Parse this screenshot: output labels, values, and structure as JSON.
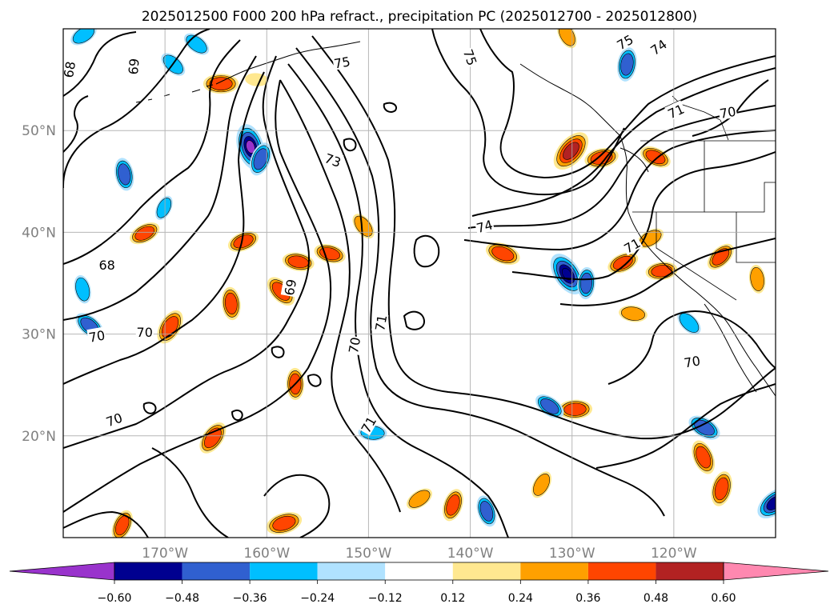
{
  "title": "2025012500 F000 200 hPa refract., precipitation PC (2025012700 - 2025012800)",
  "map": {
    "projection": "plate-carree",
    "lon_range": [
      -180,
      -110
    ],
    "lat_range": [
      10,
      60
    ],
    "lon_ticks": [
      {
        "value": -170,
        "label": "170°W"
      },
      {
        "value": -160,
        "label": "160°W"
      },
      {
        "value": -150,
        "label": "150°W"
      },
      {
        "value": -140,
        "label": "140°W"
      },
      {
        "value": -130,
        "label": "130°W"
      },
      {
        "value": -120,
        "label": "120°W"
      }
    ],
    "lat_ticks": [
      {
        "value": 20,
        "label": "20°N"
      },
      {
        "value": 30,
        "label": "30°N"
      },
      {
        "value": 40,
        "label": "40°N"
      },
      {
        "value": 50,
        "label": "50°N"
      }
    ],
    "grid": true,
    "contour_color": "#000000",
    "contour_labels": [
      {
        "text": "68",
        "lon": -179.4,
        "lat": 56.0,
        "rotate": -80
      },
      {
        "text": "69",
        "lon": -173.1,
        "lat": 56.3,
        "rotate": -85
      },
      {
        "text": "75",
        "lon": -152.6,
        "lat": 56.7,
        "rotate": -10
      },
      {
        "text": "75",
        "lon": -140.0,
        "lat": 57.2,
        "rotate": 70
      },
      {
        "text": "75",
        "lon": -124.8,
        "lat": 58.7,
        "rotate": -30
      },
      {
        "text": "74",
        "lon": -121.5,
        "lat": 58.2,
        "rotate": -35
      },
      {
        "text": "73",
        "lon": -153.5,
        "lat": 47.1,
        "rotate": 20
      },
      {
        "text": "71",
        "lon": -119.8,
        "lat": 51.9,
        "rotate": -25
      },
      {
        "text": "70",
        "lon": -114.7,
        "lat": 51.8,
        "rotate": -10
      },
      {
        "text": "74",
        "lon": -138.6,
        "lat": 40.6,
        "rotate": -15
      },
      {
        "text": "71",
        "lon": -124.1,
        "lat": 38.7,
        "rotate": -30
      },
      {
        "text": "68",
        "lon": -175.7,
        "lat": 36.8,
        "rotate": 0
      },
      {
        "text": "69",
        "lon": -157.7,
        "lat": 34.6,
        "rotate": -80
      },
      {
        "text": "70",
        "lon": -151.4,
        "lat": 28.9,
        "rotate": -80
      },
      {
        "text": "71",
        "lon": -148.8,
        "lat": 31.1,
        "rotate": -80
      },
      {
        "text": "70",
        "lon": -176.7,
        "lat": 29.8,
        "rotate": -10
      },
      {
        "text": "70",
        "lon": -172.0,
        "lat": 30.2,
        "rotate": 0
      },
      {
        "text": "70",
        "lon": -118.2,
        "lat": 27.3,
        "rotate": -10
      },
      {
        "text": "70",
        "lon": -175.0,
        "lat": 21.6,
        "rotate": -20
      },
      {
        "text": "71",
        "lon": -150.0,
        "lat": 21.1,
        "rotate": -60
      }
    ],
    "precip_features": [
      {
        "lon": -164.5,
        "lat": 54.6,
        "value": 0.42
      },
      {
        "lon": -166.9,
        "lat": 58.5,
        "value": -0.3
      },
      {
        "lon": -161.6,
        "lat": 48.4,
        "value": -0.62
      },
      {
        "lon": -160.6,
        "lat": 47.2,
        "value": -0.4
      },
      {
        "lon": -178.0,
        "lat": 59.4,
        "value": -0.3
      },
      {
        "lon": -161.0,
        "lat": 55.0,
        "value": 0.2
      },
      {
        "lon": -169.2,
        "lat": 56.5,
        "value": -0.3
      },
      {
        "lon": -174.0,
        "lat": 45.7,
        "value": -0.38
      },
      {
        "lon": -170.1,
        "lat": 42.4,
        "value": -0.25
      },
      {
        "lon": -172.0,
        "lat": 39.9,
        "value": 0.36
      },
      {
        "lon": -156.9,
        "lat": 37.1,
        "value": 0.36
      },
      {
        "lon": -158.6,
        "lat": 34.2,
        "value": 0.4
      },
      {
        "lon": -163.5,
        "lat": 33.0,
        "value": 0.38
      },
      {
        "lon": -169.5,
        "lat": 30.7,
        "value": 0.44
      },
      {
        "lon": -162.3,
        "lat": 39.1,
        "value": 0.36
      },
      {
        "lon": -153.8,
        "lat": 37.9,
        "value": 0.36
      },
      {
        "lon": -150.5,
        "lat": 40.6,
        "value": 0.3
      },
      {
        "lon": -157.2,
        "lat": 25.1,
        "value": 0.36
      },
      {
        "lon": -165.3,
        "lat": 19.8,
        "value": 0.42
      },
      {
        "lon": -158.3,
        "lat": 11.4,
        "value": 0.44
      },
      {
        "lon": -136.8,
        "lat": 37.9,
        "value": 0.42
      },
      {
        "lon": -130.5,
        "lat": 35.9,
        "value": -0.6
      },
      {
        "lon": -128.6,
        "lat": 35.0,
        "value": -0.36
      },
      {
        "lon": -130.1,
        "lat": 48.0,
        "value": 0.58
      },
      {
        "lon": -127.1,
        "lat": 47.3,
        "value": 0.4
      },
      {
        "lon": -121.8,
        "lat": 47.4,
        "value": 0.36
      },
      {
        "lon": -130.5,
        "lat": 59.4,
        "value": 0.3
      },
      {
        "lon": -124.6,
        "lat": 56.5,
        "value": -0.4
      },
      {
        "lon": -115.4,
        "lat": 37.6,
        "value": 0.36
      },
      {
        "lon": -121.2,
        "lat": 36.2,
        "value": 0.36
      },
      {
        "lon": -117.0,
        "lat": 20.8,
        "value": -0.4
      },
      {
        "lon": -117.1,
        "lat": 17.9,
        "value": 0.42
      },
      {
        "lon": -115.3,
        "lat": 14.8,
        "value": 0.42
      },
      {
        "lon": -110.1,
        "lat": 13.4,
        "value": -0.5
      },
      {
        "lon": -129.7,
        "lat": 22.6,
        "value": 0.4
      },
      {
        "lon": -132.2,
        "lat": 22.9,
        "value": -0.36
      },
      {
        "lon": -138.4,
        "lat": 12.6,
        "value": -0.36
      },
      {
        "lon": -141.7,
        "lat": 13.2,
        "value": 0.38
      },
      {
        "lon": -145.0,
        "lat": 13.8,
        "value": 0.3
      },
      {
        "lon": -149.6,
        "lat": 20.3,
        "value": -0.3
      },
      {
        "lon": -177.4,
        "lat": 30.8,
        "value": -0.38
      },
      {
        "lon": -178.1,
        "lat": 34.4,
        "value": -0.3
      },
      {
        "lon": -174.2,
        "lat": 11.2,
        "value": 0.36
      },
      {
        "lon": -122.3,
        "lat": 39.4,
        "value": 0.3
      },
      {
        "lon": -124.0,
        "lat": 32.0,
        "value": 0.3
      },
      {
        "lon": -118.5,
        "lat": 31.1,
        "value": -0.3
      },
      {
        "lon": -111.8,
        "lat": 35.4,
        "value": 0.3
      },
      {
        "lon": -133.0,
        "lat": 15.2,
        "value": 0.3
      },
      {
        "lon": -125.0,
        "lat": 37.0,
        "value": 0.36
      }
    ]
  },
  "colorbar": {
    "ticks": [
      "−0.60",
      "−0.48",
      "−0.36",
      "−0.24",
      "−0.12",
      "0.12",
      "0.24",
      "0.36",
      "0.48",
      "0.60"
    ],
    "under_color": "#9933cc",
    "over_color": "#ff88b0",
    "colors": [
      "#000090",
      "#3060d0",
      "#00bfff",
      "#b0e2ff",
      "#ffffff",
      "#ffe890",
      "#ffa000",
      "#ff4500",
      "#b22222"
    ],
    "bins": [
      {
        "color": "#9933cc",
        "min": null,
        "max": -0.6
      },
      {
        "color": "#000090",
        "min": -0.6,
        "max": -0.48
      },
      {
        "color": "#3060d0",
        "min": -0.48,
        "max": -0.36
      },
      {
        "color": "#00bfff",
        "min": -0.36,
        "max": -0.24
      },
      {
        "color": "#b0e2ff",
        "min": -0.24,
        "max": -0.12
      },
      {
        "color": "#ffffff",
        "min": -0.12,
        "max": 0.12
      },
      {
        "color": "#ffe890",
        "min": 0.12,
        "max": 0.24
      },
      {
        "color": "#ffa000",
        "min": 0.24,
        "max": 0.36
      },
      {
        "color": "#ff4500",
        "min": 0.36,
        "max": 0.48
      },
      {
        "color": "#b22222",
        "min": 0.48,
        "max": 0.6
      },
      {
        "color": "#ff88b0",
        "min": 0.6,
        "max": null
      }
    ]
  }
}
